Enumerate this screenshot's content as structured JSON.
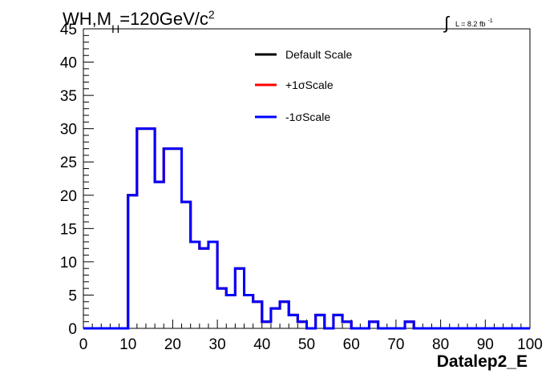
{
  "header": {
    "title_main": "WH,M",
    "title_sub": "H",
    "title_rest": "=120GeV/c",
    "title_sup": "2",
    "lumi_main": "L = 8.2 fb",
    "lumi_sup": "-1"
  },
  "chart_data": {
    "type": "histogram",
    "xlabel": "Datalep2_E",
    "ylabel": "",
    "xlim": [
      0,
      100
    ],
    "ylim": [
      0,
      45
    ],
    "bin_width": 2,
    "x_ticks": [
      "0",
      "10",
      "20",
      "30",
      "40",
      "50",
      "60",
      "70",
      "80",
      "90",
      "100"
    ],
    "y_ticks": [
      "0",
      "5",
      "10",
      "15",
      "20",
      "25",
      "30",
      "35",
      "40",
      "45"
    ],
    "legend_position": "top-center",
    "grid": false,
    "series": [
      {
        "name": "Default Scale",
        "color": "#000000",
        "values": [
          0,
          0,
          0,
          0,
          0,
          20,
          30,
          30,
          22,
          27,
          27,
          19,
          13,
          12,
          13,
          6,
          5,
          9,
          5,
          4,
          1,
          3,
          4,
          2,
          1,
          0,
          2,
          0,
          2,
          1,
          0,
          0,
          1,
          0,
          0,
          0,
          1,
          0,
          0,
          0,
          0,
          0,
          0,
          0,
          0,
          0,
          0,
          0,
          0,
          0
        ]
      },
      {
        "name": "+1σScale",
        "color": "#ff0000",
        "values": [
          0,
          0,
          0,
          0,
          0,
          20,
          30,
          30,
          22,
          27,
          27,
          19,
          13,
          12,
          13,
          6,
          5,
          9,
          5,
          4,
          1,
          3,
          4,
          2,
          1,
          0,
          2,
          0,
          2,
          1,
          0,
          0,
          1,
          0,
          0,
          0,
          1,
          0,
          0,
          0,
          0,
          0,
          0,
          0,
          0,
          0,
          0,
          0,
          0,
          0
        ]
      },
      {
        "name": "-1σScale",
        "color": "#0000ff",
        "values": [
          0,
          0,
          0,
          0,
          0,
          20,
          30,
          30,
          22,
          27,
          27,
          19,
          13,
          12,
          13,
          6,
          5,
          9,
          5,
          4,
          1,
          3,
          4,
          2,
          1,
          0,
          2,
          0,
          2,
          1,
          0,
          0,
          1,
          0,
          0,
          0,
          1,
          0,
          0,
          0,
          0,
          0,
          0,
          0,
          0,
          0,
          0,
          0,
          0,
          0
        ]
      }
    ]
  }
}
